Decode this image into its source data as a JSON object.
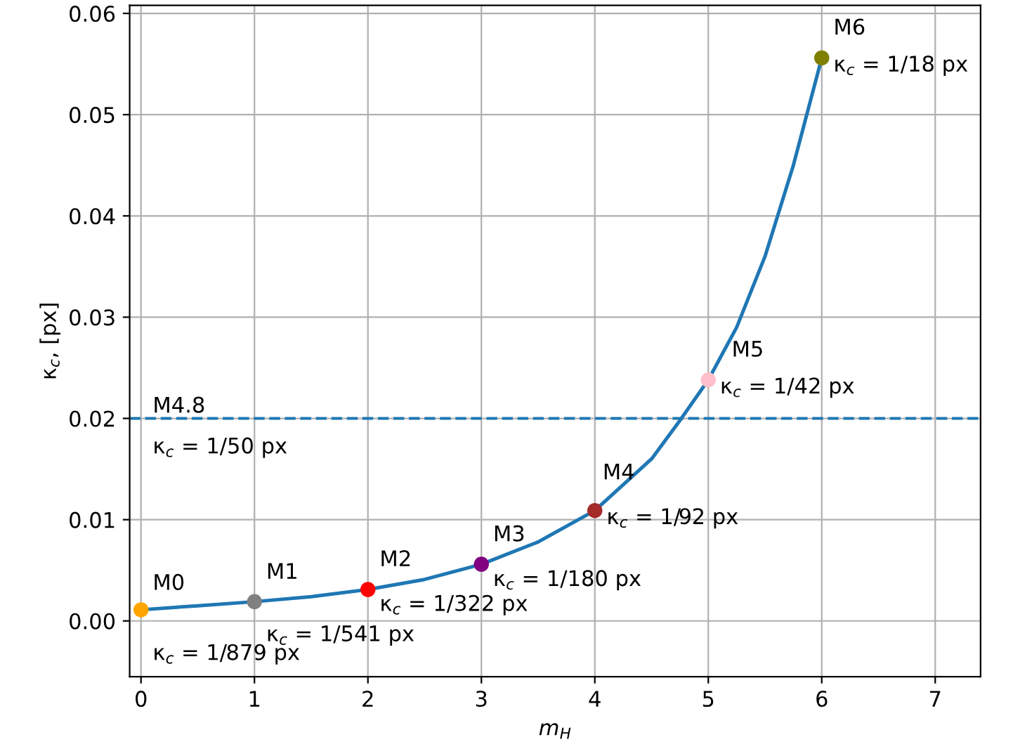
{
  "chart_data": {
    "type": "line",
    "xlabel": "m$_{H}$",
    "ylabel": "κ$_{c}$, [px]",
    "xlim": [
      -0.1,
      7.4
    ],
    "ylim": [
      -0.0055,
      0.0608
    ],
    "xticks": [
      0,
      1,
      2,
      3,
      4,
      5,
      6,
      7
    ],
    "yticks": [
      {
        "value": 0,
        "label": "0.00"
      },
      {
        "value": 0.01,
        "label": "0.01"
      },
      {
        "value": 0.02,
        "label": "0.02"
      },
      {
        "value": 0.03,
        "label": "0.03"
      },
      {
        "value": 0.04,
        "label": "0.04"
      },
      {
        "value": 0.05,
        "label": "0.05"
      },
      {
        "value": 0.06,
        "label": "0.06"
      }
    ],
    "grid": true,
    "series": [
      {
        "color": "#1f77b4",
        "marker": "none",
        "line_style": "solid",
        "x": [
          0,
          0.5,
          1,
          1.5,
          2,
          2.5,
          3,
          3.5,
          4,
          4.5,
          4.75,
          5,
          5.25,
          5.5,
          5.75,
          6
        ],
        "values": [
          0.0011,
          0.0015,
          0.0019,
          0.0024,
          0.0031,
          0.0041,
          0.0056,
          0.0078,
          0.0109,
          0.016,
          0.0198,
          0.0238,
          0.029,
          0.036,
          0.045,
          0.0556
        ]
      },
      {
        "type": "scatter",
        "marker": "circle",
        "x": [
          0,
          1,
          2,
          3,
          4,
          5,
          6
        ],
        "values": [
          0.0011,
          0.0019,
          0.0031,
          0.0056,
          0.0109,
          0.0238,
          0.0556
        ],
        "colors": [
          "#ffa500",
          "#808080",
          "#ff0000",
          "#800080",
          "#a52a2a",
          "#ffc0cb",
          "#808000"
        ]
      }
    ],
    "ref_lines": [
      {
        "axis": "y",
        "value": 0.02,
        "label": "M4.8",
        "color": "#1f77b4",
        "line_style": "dashed"
      }
    ],
    "annotations": [
      {
        "text": "κ$_{c}$ = 1/50 px",
        "x": 0,
        "y": 0.02
      },
      {
        "text": "M0",
        "x": 0,
        "y": 0.00114
      },
      {
        "text": "κ$_{c}$ = 1/879 px",
        "x": 0,
        "y": 0.00114
      },
      {
        "text": "M1",
        "x": 1,
        "y": 0.00185
      },
      {
        "text": "κ$_{c}$ = 1/541 px",
        "x": 1,
        "y": 0.00185
      },
      {
        "text": "M2",
        "x": 2,
        "y": 0.0031
      },
      {
        "text": "κ$_{c}$ = 1/322 px",
        "x": 2,
        "y": 0.0031
      },
      {
        "text": "M3",
        "x": 3,
        "y": 0.00556
      },
      {
        "text": "κ$_{c}$ = 1/180 px",
        "x": 3,
        "y": 0.00556
      },
      {
        "text": "M4",
        "x": 4,
        "y": 0.0109
      },
      {
        "text": "κ$_{c}$ = 1/92 px",
        "x": 4,
        "y": 0.0109
      },
      {
        "text": "M5",
        "x": 5,
        "y": 0.0238
      },
      {
        "text": "κ$_{c}$ = 1/42 px",
        "x": 5,
        "y": 0.0238
      },
      {
        "text": "M6",
        "x": 6,
        "y": 0.0556
      },
      {
        "text": "κ$_{c}$ = 1/18 px",
        "x": 6,
        "y": 0.0556
      }
    ]
  }
}
